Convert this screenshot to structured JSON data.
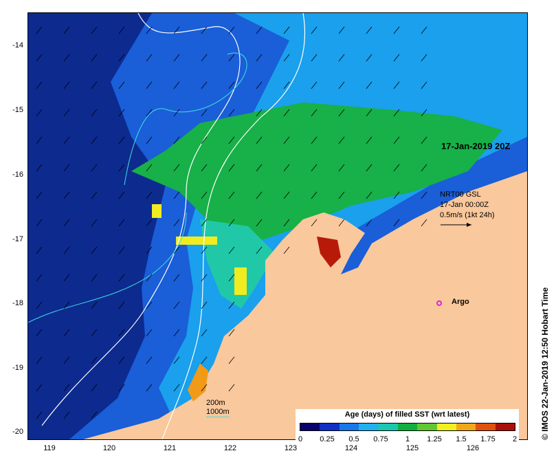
{
  "map": {
    "timestamp": "17-Jan-2019 20Z",
    "vector_note": {
      "line1": "NRT00 GSL",
      "line2": "17-Jan 00:00Z",
      "line3": "0.5m/s (1kt 24h)"
    },
    "argo_label": "Argo",
    "contour_legend": {
      "line_200": "200m",
      "line_1000": "1000m"
    },
    "y_ticks": [
      "-14",
      "-15",
      "-16",
      "-17",
      "-18",
      "-19",
      "-20"
    ],
    "x_ticks": [
      "119",
      "120",
      "121",
      "122",
      "123",
      "124",
      "125",
      "126"
    ],
    "colorbar": {
      "title": "Age (days) of filled SST (wrt latest)",
      "ticks": [
        "0",
        "0.25",
        "0.5",
        "0.75",
        "1",
        "1.25",
        "1.5",
        "1.75",
        "2"
      ],
      "colors": [
        "#08006e",
        "#1030c8",
        "#1878e8",
        "#20b0f0",
        "#18c8b0",
        "#10b040",
        "#60c830",
        "#f0f020",
        "#f0a818",
        "#e05010",
        "#a81008"
      ]
    },
    "credit": "© IMOS 22-Jan-2019 12:50 Hobart Time",
    "colors": {
      "land": "#f9c89c",
      "deep": "#0d2a8f",
      "mid": "#1a5ed8",
      "shelf": "#1aa0ec",
      "green": "#18b048",
      "teal": "#20c8a8",
      "yellow": "#f0ec20",
      "orange": "#f09a18",
      "red": "#b81a0a",
      "contour200": "#40e0e0",
      "contour1000": "#ffffff",
      "argo": "#e020e0"
    }
  }
}
